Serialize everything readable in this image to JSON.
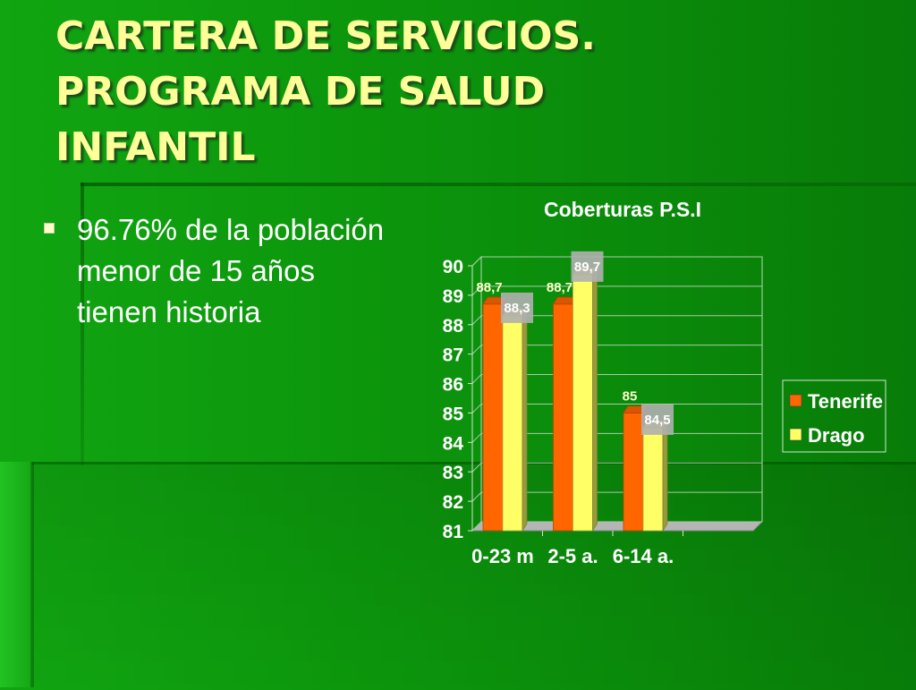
{
  "slide": {
    "title_lines": [
      "CARTERA DE SERVICIOS.",
      "PROGRAMA DE SALUD",
      "INFANTIL"
    ],
    "bullet": "96.76% de la población menor de 15 años tienen historia"
  },
  "colors": {
    "title": "#ffff99",
    "tenerife": "#ff6600",
    "drago": "#ffff66",
    "label_box": "#b0b0b0"
  },
  "chart_data": {
    "type": "bar",
    "title": "Coberturas P.S.I",
    "categories": [
      "0-23 m",
      "2-5 a.",
      "6-14 a."
    ],
    "series": [
      {
        "name": "Tenerife",
        "values": [
          88.7,
          88.7,
          85
        ],
        "labels": [
          "88,7",
          "88,7",
          "85"
        ]
      },
      {
        "name": "Drago",
        "values": [
          88.3,
          89.7,
          84.5
        ],
        "labels": [
          "88,3",
          "89,7",
          "84,5"
        ]
      }
    ],
    "ylim": [
      81,
      90
    ],
    "yticks": [
      "81",
      "82",
      "83",
      "84",
      "85",
      "86",
      "87",
      "88",
      "89",
      "90"
    ],
    "xlabel": "",
    "ylabel": "",
    "grid": true,
    "legend": "right",
    "three_d": true
  }
}
